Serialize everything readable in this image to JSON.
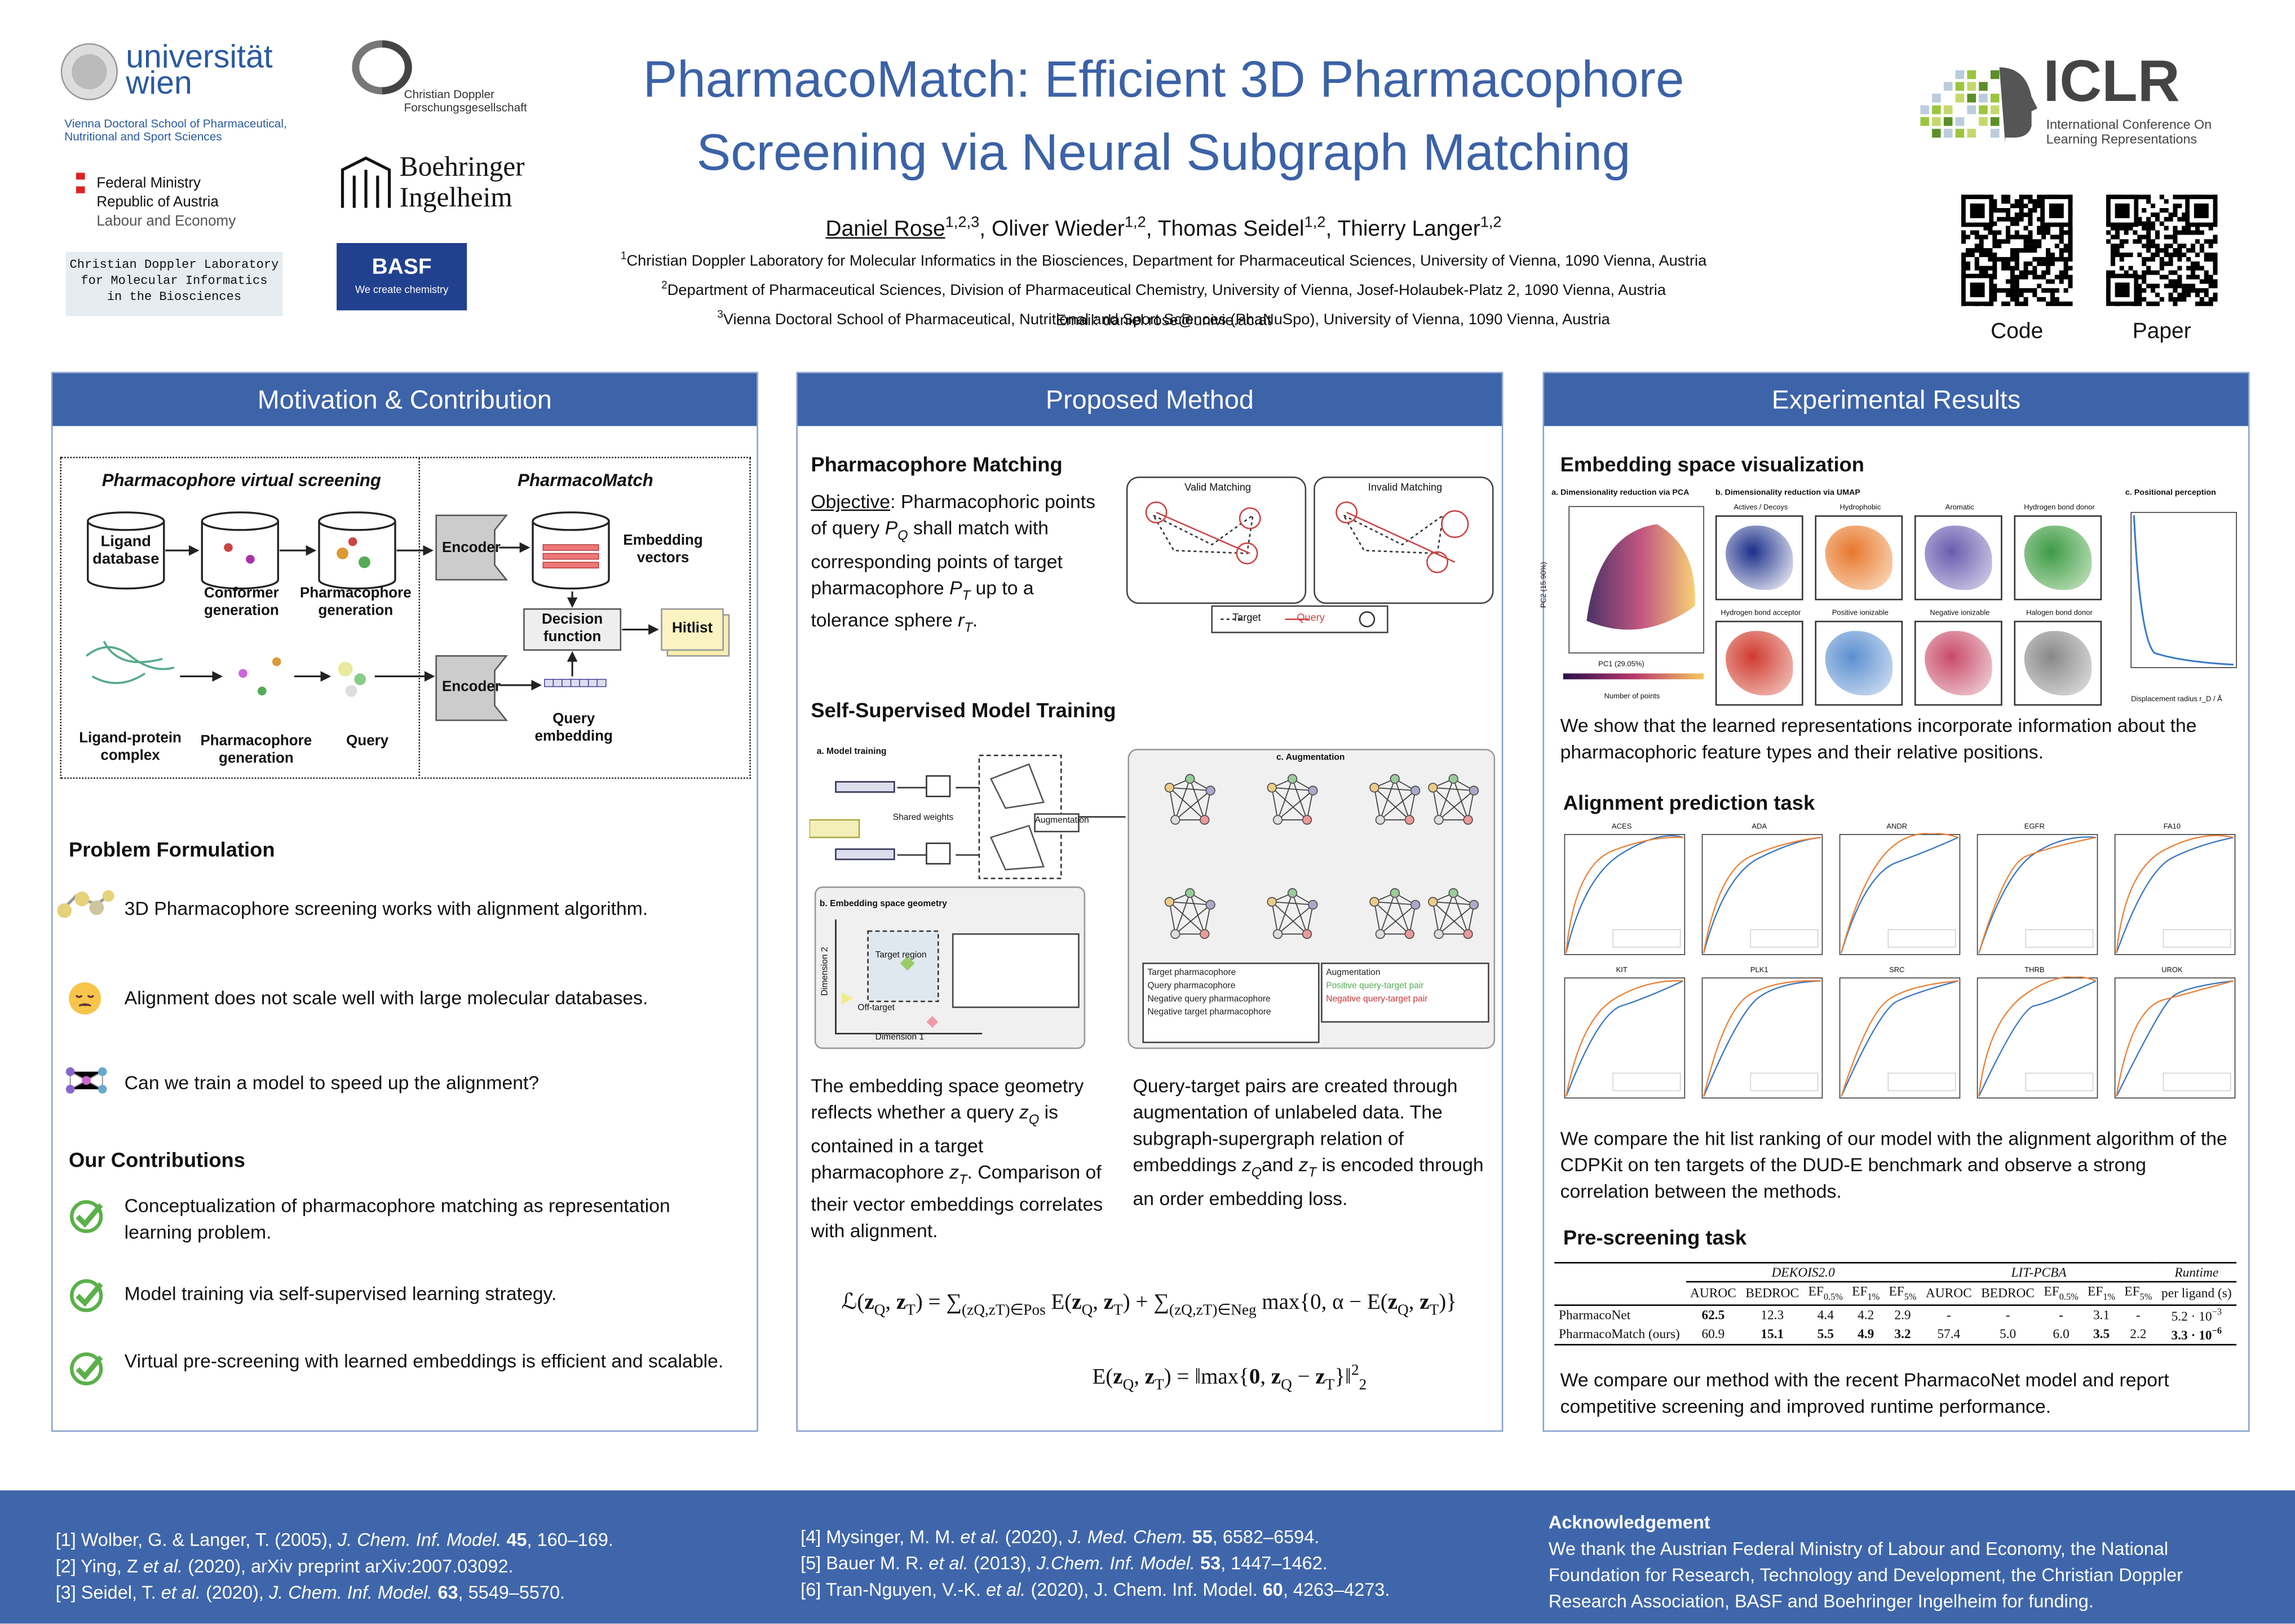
{
  "header": {
    "title_lines": [
      "PharmacoMatch: Efficient 3D Pharmacophore",
      "Screening via Neural Subgraph Matching"
    ],
    "authors": [
      {
        "name": "Daniel Rose",
        "sup": "1,2,3"
      },
      {
        "name": "Oliver Wieder",
        "sup": "1,2"
      },
      {
        "name": "Thomas Seidel",
        "sup": "1,2"
      },
      {
        "name": "Thierry Langer",
        "sup": "1,2"
      }
    ],
    "affiliations": [
      {
        "sup": "1",
        "text": "Christian Doppler Laboratory for Molecular Informatics in the Biosciences, Department for Pharmaceutical Sciences, University of Vienna, 1090 Vienna, Austria"
      },
      {
        "sup": "2",
        "text": "Department of Pharmaceutical Sciences, Division of Pharmaceutical Chemistry, University of Vienna, Josef-Holaubek-Platz 2, 1090 Vienna, Austria"
      },
      {
        "sup": "3",
        "text": "Vienna Doctoral School of Pharmaceutical, Nutritional and Sport Sciences (PhaNuSpo), University of Vienna, 1090 Vienna, Austria"
      }
    ],
    "email": "Email: daniel.rose@univie.ac.at",
    "logos": {
      "univie": "universität wien",
      "vds": "Vienna Doctoral School of  Pharmaceutical, Nutritional and Sport Sciences",
      "ministry": [
        "Federal Ministry",
        "Republic of Austria",
        "Labour and Economy"
      ],
      "cdl": [
        "Christian Doppler Laboratory",
        "for Molecular Informatics",
        "in the Biosciences"
      ],
      "cdg": [
        "Christian Doppler",
        "Forschungsgesellschaft"
      ],
      "bi": [
        "Boehringer",
        "Ingelheim"
      ],
      "basf": "BASF",
      "basf_tag": "We create chemistry",
      "iclr": "ICLR",
      "iclr_sub": [
        "International Conference On",
        "Learning Representations"
      ]
    },
    "qr_labels": [
      "Code",
      "Paper"
    ]
  },
  "panels": [
    {
      "title": "Motivation & Contribution",
      "figure": {
        "left_title": "Pharmacophore virtual screening",
        "right_title": "PharmacoMatch",
        "ligand_db": "Ligand database",
        "conformer": "Conformer generation",
        "pharm_gen": "Pharmacophore generation",
        "encoder": "Encoder",
        "embedding_vectors": "Embedding vectors",
        "decision": "Decision function",
        "hitlist": "Hitlist",
        "query_embedding": "Query embedding",
        "complex": "Ligand-protein complex",
        "pharm_gen2": "Pharmacophore generation",
        "query": "Query"
      },
      "problem_title": "Problem Formulation",
      "problems": [
        "3D Pharmacophore screening works with alignment algorithm.",
        "Alignment does not scale well with large molecular databases.",
        "Can we train a model to speed up the alignment?"
      ],
      "contrib_title": "Our Contributions",
      "contributions": [
        "Conceptualization of pharmacophore matching as representation learning problem.",
        "Model training via self-supervised learning strategy.",
        "Virtual pre-screening with learned embeddings is efficient and scalable."
      ]
    },
    {
      "title": "Proposed Method",
      "matching_title": "Pharmacophore Matching",
      "objective_label": "Objective",
      "objective": [
        ": Pharmacophoric points of query ",
        {
          "t": "P",
          "sub": "Q",
          "i": true
        },
        " shall match with corresponding points of target pharmacophore ",
        {
          "t": "P",
          "sub": "T",
          "i": true
        },
        " up to a tolerance sphere ",
        {
          "t": "r",
          "sub": "T",
          "i": true
        },
        "."
      ],
      "matching_fig": {
        "valid": "Valid Matching",
        "invalid": "Invalid Matching",
        "target": "Target",
        "query": "Query"
      },
      "training_title": "Self-Supervised Model Training",
      "training_fig": {
        "a": "a. Model training",
        "shared": "Shared weights",
        "augmentation": "Augmentation",
        "b": "b. Embedding space geometry",
        "target_region": "Target region",
        "off_target": "Off-target",
        "dim1": "Dimension 1",
        "dim2": "Dimension 2",
        "c": "c. Augmentation",
        "legend": [
          "Target pharmacophore",
          "Query pharmacophore",
          "Negative query pharmacophore",
          "Negative target pharmacophore"
        ],
        "legend2": [
          "Augmentation",
          "Positive query-target pair",
          "Negative query-target pair"
        ]
      },
      "left_text": [
        "The embedding space geometry reflects whether a query ",
        {
          "t": "z",
          "sub": "Q",
          "i": true
        },
        " is contained in a target pharmacophore ",
        {
          "t": "z",
          "sub": "T",
          "i": true
        },
        ". Comparison of their vector embeddings correlates with alignment."
      ],
      "right_text": [
        "Query-target pairs are created through augmentation of unlabeled data. The subgraph-supergraph relation of embeddings ",
        {
          "t": "z",
          "sub": "Q",
          "i": true
        },
        "and ",
        {
          "t": "z",
          "sub": "T",
          "i": true
        },
        " is encoded through an order embedding loss."
      ],
      "equation1": [
        "ℒ(",
        {
          "t": "z",
          "sub": "Q",
          "b": true
        },
        ", ",
        {
          "t": "z",
          "sub": "T",
          "b": true
        },
        ") = ",
        {
          "t": "∑",
          "sub": "(zQ,zT)∈Pos"
        },
        " E(",
        {
          "t": "z",
          "sub": "Q",
          "b": true
        },
        ", ",
        {
          "t": "z",
          "sub": "T",
          "b": true
        },
        ") + ",
        {
          "t": "∑",
          "sub": "(zQ,zT)∈Neg"
        },
        " max{0, α − E(",
        {
          "t": "z",
          "sub": "Q",
          "b": true
        },
        ", ",
        {
          "t": "z",
          "sub": "T",
          "b": true
        },
        ")}"
      ],
      "equation2": [
        "E(",
        {
          "t": "z",
          "sub": "Q",
          "b": true
        },
        ", ",
        {
          "t": "z",
          "sub": "T",
          "b": true
        },
        ") = ‖max{",
        {
          "t": "0",
          "b": true
        },
        ", ",
        {
          "t": "z",
          "sub": "Q",
          "b": true
        },
        " − ",
        {
          "t": "z",
          "sub": "T",
          "b": true
        },
        {
          "t": "}‖",
          "sup": "2",
          "sub": "2"
        }
      ]
    },
    {
      "title": "Experimental Results",
      "embed_title": "Embedding space visualization",
      "embed_fig": {
        "a": "a. Dimensionality reduction via PCA",
        "b": "b. Dimensionality reduction via UMAP",
        "c": "c. Positional perception",
        "pc1": "PC1 (29.05%)",
        "pc2": "PC2 (15.90%)",
        "npoints": "Number of points",
        "umap_titles": [
          "Actives / Decoys",
          "Hydrophobic",
          "Aromatic",
          "Hydrogen bond donor",
          "Hydrogen bond acceptor",
          "Positive ionizable",
          "Negative ionizable",
          "Halogen bond donor"
        ],
        "displacement": "Displacement radius r_D / Å"
      },
      "embed_text": "We show that the learned representations incorporate information about the pharmacophoric feature types and their relative positions.",
      "align_title": "Alignment prediction task",
      "targets": [
        "ACES",
        "ADA",
        "ANDR",
        "EGFR",
        "FA10",
        "KIT",
        "PLK1",
        "SRC",
        "THRB",
        "UROK"
      ],
      "align_text": "We compare the hit list ranking of our model with the alignment algorithm of the CDPKit on ten targets of the DUD-E benchmark and observe a strong correlation between the methods.",
      "prescreen_title": "Pre-screening task",
      "table": {
        "groups": [
          "DEKOIS2.0",
          "LIT-PCBA",
          "Runtime"
        ],
        "columns": [
          "AUROC",
          "BEDROC",
          [
            {
              "t": "EF",
              "sub": "0.5%"
            }
          ],
          [
            {
              "t": "EF",
              "sub": "1%"
            }
          ],
          [
            {
              "t": "EF",
              "sub": "5%"
            }
          ],
          "AUROC",
          "BEDROC",
          [
            {
              "t": "EF",
              "sub": "0.5%"
            }
          ],
          [
            {
              "t": "EF",
              "sub": "1%"
            }
          ],
          [
            {
              "t": "EF",
              "sub": "5%"
            }
          ],
          "per ligand (s)"
        ],
        "rows": [
          [
            "PharmacoNet",
            [
              {
                "t": "62.5",
                "b": true
              }
            ],
            "12.3",
            "4.4",
            "4.2",
            "2.9",
            "-",
            "-",
            "-",
            "3.1",
            "-",
            [
              {
                "t": "5.2 · 10",
                "sup": "−3"
              }
            ]
          ],
          [
            "PharmacoMatch (ours)",
            "60.9",
            [
              {
                "t": "15.1",
                "b": true
              }
            ],
            [
              {
                "t": "5.5",
                "b": true
              }
            ],
            [
              {
                "t": "4.9",
                "b": true
              }
            ],
            [
              {
                "t": "3.2",
                "b": true
              }
            ],
            "57.4",
            "5.0",
            "6.0",
            [
              {
                "t": "3.5",
                "b": true
              }
            ],
            "2.2",
            [
              {
                "t": "3.3 · 10",
                "sup": "−6",
                "b": true
              }
            ]
          ]
        ]
      },
      "prescreen_text": "We compare our method with the recent PharmacoNet model and report competitive screening and improved runtime performance."
    }
  ],
  "footer": {
    "refs_left": [
      [
        "[1] Wolber, G. & Langer, T. (2005), ",
        {
          "t": "J. Chem. Inf. Model.",
          "i": true
        },
        " ",
        {
          "t": "45",
          "b": true
        },
        ", 160–169."
      ],
      [
        "[2] Ying, Z ",
        {
          "t": "et al.",
          "i": true
        },
        " (2020), arXiv preprint arXiv:2007.03092."
      ],
      [
        "[3] Seidel, T. ",
        {
          "t": "et al.",
          "i": true
        },
        " (2020),  ",
        {
          "t": "J. Chem. Inf. Model.",
          "i": true
        },
        " ",
        {
          "t": "63",
          "b": true
        },
        ", 5549–5570."
      ]
    ],
    "refs_right": [
      [
        "[4] Mysinger, M. M. ",
        {
          "t": "et al.",
          "i": true
        },
        " (2020), ",
        {
          "t": "J. Med. Chem.",
          "i": true
        },
        " ",
        {
          "t": "55",
          "b": true
        },
        ", 6582–6594."
      ],
      [
        "[5] Bauer M. R. ",
        {
          "t": "et al.",
          "i": true
        },
        " (2013), ",
        {
          "t": "J.Chem. Inf. Model.",
          "i": true
        },
        " ",
        {
          "t": "53",
          "b": true
        },
        ", 1447–1462."
      ],
      [
        "[6] Tran-Nguyen, V.-K. ",
        {
          "t": "et al.",
          "i": true
        },
        " (2020), J. Chem. Inf. Model. ",
        {
          "t": "60",
          "b": true
        },
        ", 4263–4273."
      ]
    ],
    "ack_title": "Acknowledgement",
    "ack_text": "We thank the Austrian Federal Ministry of Labour and Economy, the National Foundation for Research, Technology and Development, the Christian Doppler Research Association, BASF and Boehringer Ingelheim for funding."
  }
}
